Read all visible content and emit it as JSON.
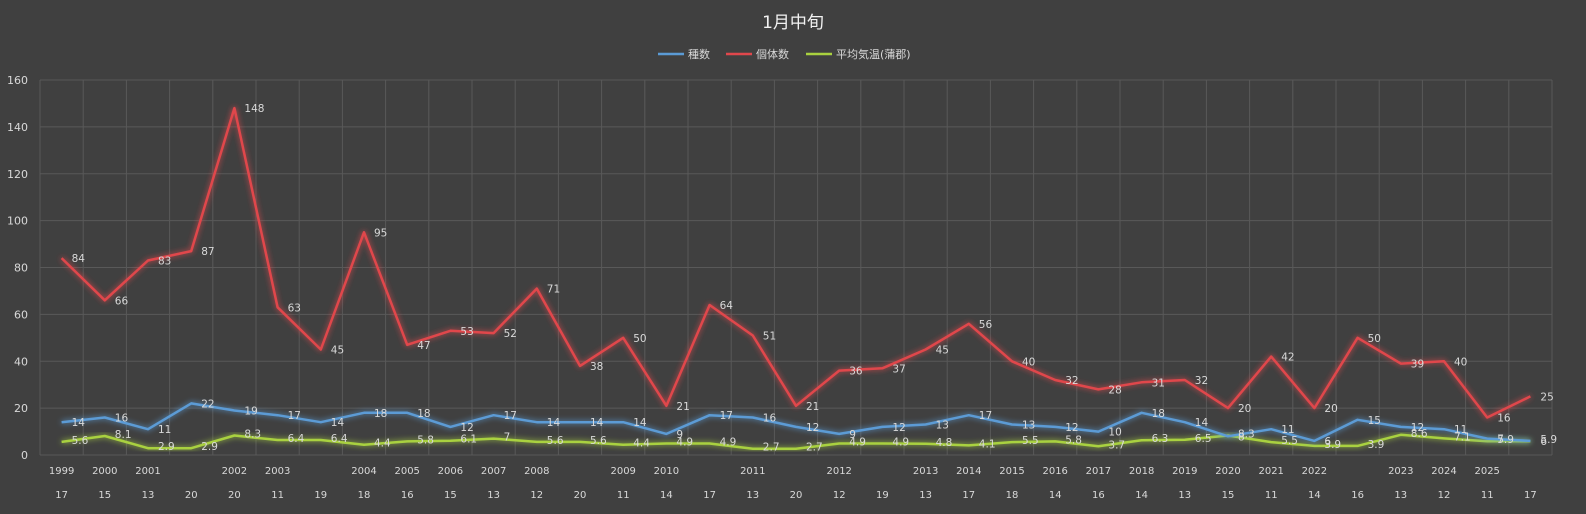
{
  "chart_data": {
    "type": "line",
    "title": "1月中旬",
    "ylim": [
      0,
      160
    ],
    "yticks": [
      0,
      20,
      40,
      60,
      80,
      100,
      120,
      140,
      160
    ],
    "grid": true,
    "legend_position": "top-center",
    "x_year_labels": [
      "1999",
      "2000",
      "2001",
      "",
      "2002",
      "2003",
      "",
      "2004",
      "2005",
      "2006",
      "2007",
      "2008",
      "",
      "2009",
      "2010",
      "",
      "2011",
      "",
      "2012",
      "",
      "2013",
      "2014",
      "2015",
      "2016",
      "2017",
      "2018",
      "2019",
      "2020",
      "2021",
      "2022",
      "",
      "2023",
      "2024",
      "2025",
      ""
    ],
    "x_day_labels": [
      "17",
      "15",
      "13",
      "20",
      "20",
      "11",
      "19",
      "18",
      "16",
      "15",
      "13",
      "12",
      "20",
      "11",
      "14",
      "17",
      "13",
      "20",
      "12",
      "19",
      "13",
      "17",
      "18",
      "14",
      "16",
      "14",
      "13",
      "15",
      "11",
      "14",
      "16",
      "13",
      "12",
      "11",
      "17"
    ],
    "series": [
      {
        "name": "種数",
        "color": "#5b9bd5",
        "values": [
          14,
          16,
          11,
          22,
          19,
          17,
          14,
          18,
          18,
          12,
          17,
          14,
          14,
          14,
          9,
          17,
          16,
          12,
          9,
          12,
          13,
          17,
          13,
          12,
          10,
          18,
          14,
          8,
          11,
          6,
          15,
          12,
          11,
          7,
          6
        ]
      },
      {
        "name": "個体数",
        "color": "#e0474c",
        "values": [
          84,
          66,
          83,
          87,
          148,
          63,
          45,
          95,
          47,
          53,
          52,
          71,
          38,
          50,
          21,
          64,
          51,
          21,
          36,
          37,
          45,
          56,
          40,
          32,
          28,
          31,
          32,
          20,
          42,
          20,
          50,
          39,
          40,
          16,
          25
        ]
      },
      {
        "name": "平均気温(蒲郡)",
        "color": "#a9d13f",
        "values": [
          5.6,
          8.1,
          2.9,
          2.9,
          8.3,
          6.4,
          6.4,
          4.4,
          5.8,
          6.1,
          7,
          5.6,
          5.6,
          4.4,
          4.9,
          4.9,
          2.7,
          2.7,
          4.9,
          4.9,
          4.8,
          4.1,
          5.5,
          5.8,
          3.7,
          6.3,
          6.5,
          8.3,
          5.5,
          3.9,
          3.9,
          8.6,
          7.1,
          5.9,
          5.9
        ]
      }
    ]
  }
}
